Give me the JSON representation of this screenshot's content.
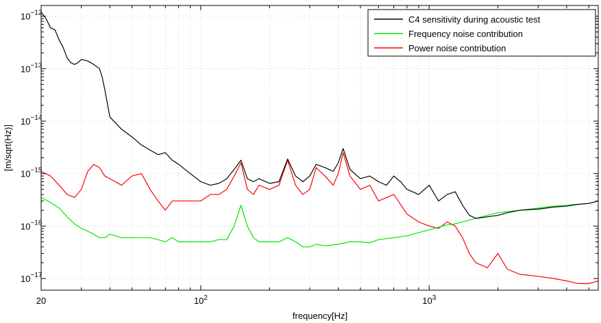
{
  "chart_data": {
    "type": "line",
    "title": "",
    "xlabel": "frequency[Hz]",
    "ylabel": "[m/sqrt(Hz)]",
    "x_scale": "log",
    "y_scale": "log",
    "xlim": [
      20,
      5500
    ],
    "ylim": [
      6e-18,
      1.6e-12
    ],
    "grid": true,
    "legend_position": "top-right",
    "x_ticks": [
      {
        "value": 20,
        "label": "20"
      },
      {
        "value": 100,
        "label": "10",
        "exp": "2"
      },
      {
        "value": 1000,
        "label": "10",
        "exp": "3"
      }
    ],
    "y_ticks": [
      {
        "value": 1e-17,
        "label": "10",
        "exp": "−17"
      },
      {
        "value": 1e-16,
        "label": "10",
        "exp": "−16"
      },
      {
        "value": 1e-15,
        "label": "10",
        "exp": "−15"
      },
      {
        "value": 1e-14,
        "label": "10",
        "exp": "−14"
      },
      {
        "value": 1e-13,
        "label": "10",
        "exp": "−13"
      },
      {
        "value": 1e-12,
        "label": "10",
        "exp": "−12"
      }
    ],
    "series": [
      {
        "name": "C4 sensitivity during acoustic test",
        "color": "#000000",
        "x": [
          20,
          21,
          22,
          23,
          24,
          25,
          26,
          27,
          28,
          29,
          30,
          32,
          34,
          36,
          37,
          38,
          40,
          45,
          50,
          55,
          60,
          65,
          70,
          75,
          80,
          90,
          100,
          110,
          120,
          130,
          140,
          150,
          160,
          170,
          180,
          200,
          220,
          240,
          260,
          280,
          300,
          320,
          350,
          380,
          400,
          420,
          450,
          500,
          550,
          600,
          650,
          700,
          750,
          800,
          900,
          1000,
          1100,
          1200,
          1300,
          1400,
          1500,
          1600,
          1800,
          2000,
          2200,
          2500,
          3000,
          3500,
          4000,
          4500,
          5000,
          5500
        ],
        "y": [
          1.2e-12,
          9e-13,
          6e-13,
          5.5e-13,
          3.5e-13,
          2.5e-13,
          1.6e-13,
          1.3e-13,
          1.2e-13,
          1.3e-13,
          1.5e-13,
          1.4e-13,
          1.2e-13,
          1e-13,
          7e-14,
          4e-14,
          1.2e-14,
          7e-15,
          5e-15,
          3.5e-15,
          2.8e-15,
          2.3e-15,
          2.5e-15,
          1.8e-15,
          1.5e-15,
          1e-15,
          7e-16,
          6e-16,
          6.5e-16,
          8e-16,
          1.2e-15,
          1.8e-15,
          8e-16,
          7e-16,
          8e-16,
          6.5e-16,
          7e-16,
          1.9e-15,
          9e-16,
          7e-16,
          9e-16,
          1.5e-15,
          1.3e-15,
          1.1e-15,
          1.6e-15,
          3e-15,
          1.2e-15,
          8e-16,
          9e-16,
          7e-16,
          6e-16,
          9e-16,
          7e-16,
          5e-16,
          4e-16,
          6e-16,
          3e-16,
          4e-16,
          4.5e-16,
          2.5e-16,
          1.6e-16,
          1.4e-16,
          1.5e-16,
          1.6e-16,
          1.8e-16,
          2e-16,
          2.1e-16,
          2.3e-16,
          2.4e-16,
          2.6e-16,
          2.7e-16,
          3e-16
        ]
      },
      {
        "name": "Frequency noise contribution",
        "color": "#00e600",
        "x": [
          20,
          22,
          24,
          26,
          28,
          30,
          32,
          34,
          36,
          38,
          40,
          45,
          50,
          55,
          60,
          65,
          70,
          75,
          80,
          90,
          100,
          110,
          120,
          130,
          140,
          150,
          160,
          170,
          180,
          200,
          220,
          240,
          260,
          280,
          300,
          320,
          350,
          400,
          450,
          500,
          550,
          600,
          700,
          800,
          900,
          1000,
          1100,
          1200,
          1300,
          1400,
          1500,
          1600,
          1800,
          2000,
          2500,
          3000,
          3500,
          4000,
          4500,
          5000,
          5500
        ],
        "y": [
          3.5e-16,
          2.8e-16,
          2.2e-16,
          1.5e-16,
          1.1e-16,
          9e-17,
          8e-17,
          7e-17,
          6e-17,
          6e-17,
          7e-17,
          6e-17,
          6e-17,
          6e-17,
          6e-17,
          5.5e-17,
          5e-17,
          6e-17,
          5e-17,
          5e-17,
          5e-17,
          5e-17,
          5.5e-17,
          5.5e-17,
          1e-16,
          2.5e-16,
          1e-16,
          6e-17,
          5e-17,
          5e-17,
          5e-17,
          6e-17,
          5e-17,
          4e-17,
          4e-17,
          4.5e-17,
          4.2e-17,
          4.5e-17,
          5e-17,
          5e-17,
          4.8e-17,
          5.5e-17,
          6e-17,
          6.5e-17,
          7.5e-17,
          8.5e-17,
          9.5e-17,
          1.05e-16,
          1.1e-16,
          1.2e-16,
          1.3e-16,
          1.4e-16,
          1.6e-16,
          1.8e-16,
          2e-16,
          2.2e-16,
          2.4e-16,
          2.5e-16,
          2.6e-16,
          2.7e-16,
          3e-16
        ]
      },
      {
        "name": "Power noise contribution",
        "color": "#ff0000",
        "x": [
          20,
          22,
          24,
          26,
          28,
          30,
          32,
          34,
          36,
          38,
          40,
          45,
          50,
          55,
          60,
          65,
          70,
          75,
          80,
          90,
          100,
          110,
          120,
          130,
          140,
          150,
          160,
          170,
          180,
          200,
          220,
          240,
          260,
          280,
          300,
          320,
          350,
          380,
          400,
          420,
          450,
          500,
          550,
          600,
          700,
          800,
          900,
          1000,
          1100,
          1200,
          1300,
          1400,
          1500,
          1600,
          1800,
          2000,
          2200,
          2500,
          3000,
          3500,
          4000,
          4500,
          5000,
          5500
        ],
        "y": [
          1.1e-15,
          9e-16,
          6e-16,
          4e-16,
          3.5e-16,
          5e-16,
          1.1e-15,
          1.5e-15,
          1.3e-15,
          9e-16,
          8e-16,
          6e-16,
          9e-16,
          1e-15,
          5e-16,
          3e-16,
          2e-16,
          3e-16,
          3e-16,
          3e-16,
          3e-16,
          4e-16,
          4e-16,
          5e-16,
          9e-16,
          1.6e-15,
          5e-16,
          4e-16,
          6e-16,
          5e-16,
          6e-16,
          1.8e-15,
          6e-16,
          4e-16,
          5e-16,
          1.3e-15,
          9e-16,
          6e-16,
          1e-15,
          2.5e-15,
          9e-16,
          5e-16,
          6e-16,
          3e-16,
          4e-16,
          1.7e-16,
          1.2e-16,
          1e-16,
          9e-17,
          1.2e-16,
          1e-16,
          6e-17,
          3e-17,
          2e-17,
          1.6e-17,
          3e-17,
          1.5e-17,
          1.2e-17,
          1.1e-17,
          1e-17,
          9e-18,
          8e-18,
          8e-18,
          9e-18
        ]
      }
    ]
  }
}
